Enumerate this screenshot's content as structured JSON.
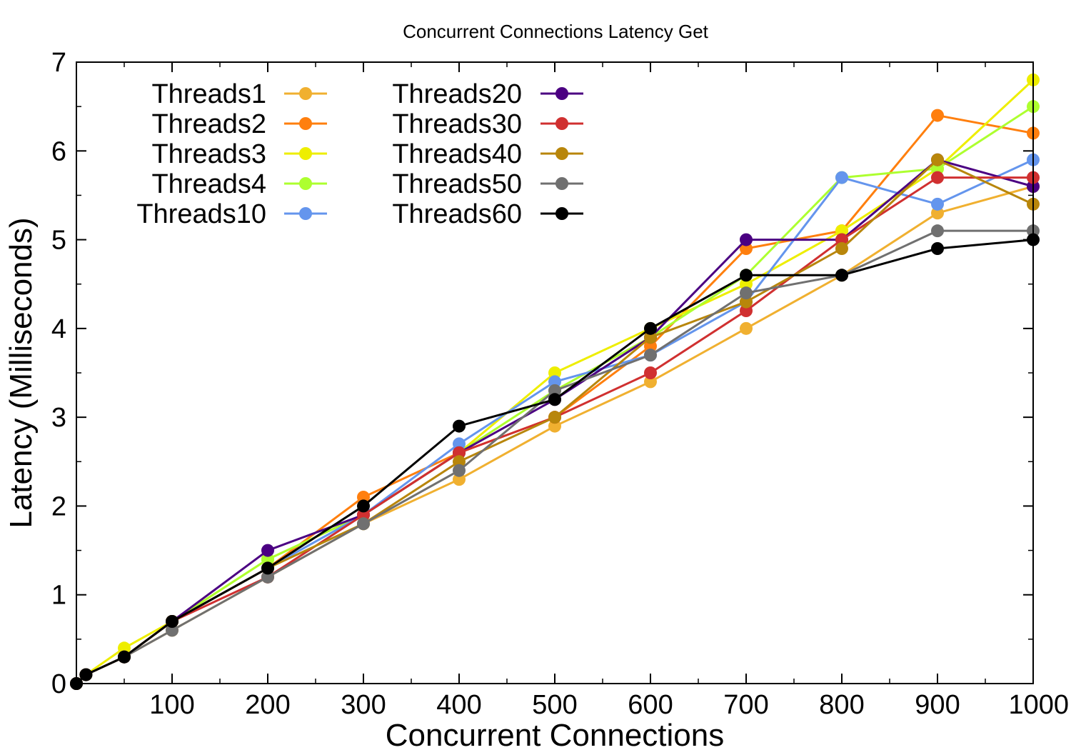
{
  "chart_data": {
    "type": "line",
    "title": "Concurrent Connections Latency Get",
    "xlabel": "Concurrent Connections",
    "ylabel": "Latency (Milliseconds)",
    "xlim": [
      0,
      1000
    ],
    "ylim": [
      0,
      7
    ],
    "x_ticks": [
      100,
      200,
      300,
      400,
      500,
      600,
      700,
      800,
      900,
      1000
    ],
    "y_ticks": [
      0,
      1,
      2,
      3,
      4,
      5,
      6,
      7
    ],
    "grid": false,
    "legend_position": "top-left",
    "x": [
      0,
      10,
      50,
      100,
      200,
      300,
      400,
      500,
      600,
      700,
      800,
      900,
      1000
    ],
    "series": [
      {
        "name": "Threads1",
        "color": "#f0b030",
        "values": [
          0,
          0.1,
          0.3,
          0.6,
          1.2,
          1.8,
          2.3,
          2.9,
          3.4,
          4.0,
          4.6,
          5.3,
          5.6
        ]
      },
      {
        "name": "Threads2",
        "color": "#ff7f0e",
        "values": [
          0,
          0.1,
          0.3,
          0.7,
          1.3,
          2.1,
          2.6,
          3.0,
          3.8,
          4.9,
          5.1,
          6.4,
          6.2
        ]
      },
      {
        "name": "Threads3",
        "color": "#eeee00",
        "values": [
          0,
          0.1,
          0.4,
          0.7,
          1.4,
          1.9,
          2.6,
          3.5,
          4.0,
          4.5,
          5.1,
          5.8,
          6.8
        ]
      },
      {
        "name": "Threads4",
        "color": "#adff2f",
        "values": [
          0,
          0.1,
          0.3,
          0.7,
          1.4,
          1.9,
          2.6,
          3.3,
          3.9,
          4.6,
          5.7,
          5.8,
          6.5
        ]
      },
      {
        "name": "Threads10",
        "color": "#6495ed",
        "values": [
          0,
          0.1,
          0.3,
          0.7,
          1.3,
          1.9,
          2.7,
          3.4,
          3.7,
          4.3,
          5.7,
          5.4,
          5.9
        ]
      },
      {
        "name": "Threads20",
        "color": "#4b0082",
        "values": [
          0,
          0.1,
          0.3,
          0.7,
          1.5,
          1.9,
          2.6,
          3.2,
          3.9,
          5.0,
          5.0,
          5.9,
          5.6
        ]
      },
      {
        "name": "Threads30",
        "color": "#d03030",
        "values": [
          0,
          0.1,
          0.3,
          0.7,
          1.2,
          1.9,
          2.6,
          3.0,
          3.5,
          4.2,
          5.0,
          5.7,
          5.7
        ]
      },
      {
        "name": "Threads40",
        "color": "#b8860b",
        "values": [
          0,
          0.1,
          0.3,
          0.7,
          1.3,
          1.8,
          2.5,
          3.0,
          3.9,
          4.3,
          4.9,
          5.9,
          5.4
        ]
      },
      {
        "name": "Threads50",
        "color": "#707070",
        "values": [
          0,
          0.1,
          0.3,
          0.6,
          1.2,
          1.8,
          2.4,
          3.3,
          3.7,
          4.4,
          4.6,
          5.1,
          5.1
        ]
      },
      {
        "name": "Threads60",
        "color": "#000000",
        "values": [
          0,
          0.1,
          0.3,
          0.7,
          1.3,
          2.0,
          2.9,
          3.2,
          4.0,
          4.6,
          4.6,
          4.9,
          5.0
        ]
      }
    ]
  }
}
